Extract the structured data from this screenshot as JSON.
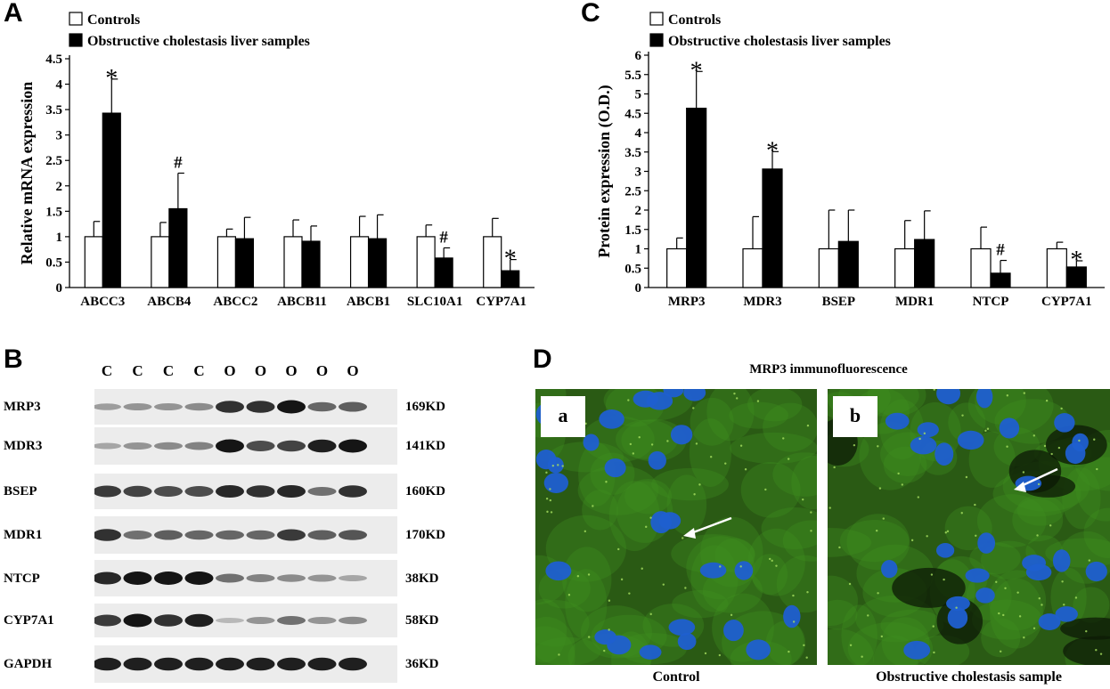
{
  "panels": {
    "a": "A",
    "b": "B",
    "c": "C",
    "d": "D"
  },
  "chart_data": [
    {
      "type": "bar",
      "panel": "A",
      "title": "",
      "xlabel": "",
      "ylabel": "Relative mRNA expression",
      "ylim": [
        0,
        4.5
      ],
      "yticks": [
        "0",
        "0.5",
        "1",
        "1.5",
        "2",
        "2.5",
        "3",
        "3.5",
        "4",
        "4.5"
      ],
      "categories": [
        "ABCC3",
        "ABCB4",
        "ABCC2",
        "ABCB11",
        "ABCB1",
        "SLC10A1",
        "CYP7A1"
      ],
      "series": [
        {
          "name": "Controls",
          "color": "#ffffff",
          "values": [
            1.0,
            1.0,
            1.0,
            1.0,
            1.0,
            1.0,
            1.0
          ],
          "errors": [
            0.3,
            0.28,
            0.15,
            0.33,
            0.4,
            0.23,
            0.36
          ]
        },
        {
          "name": "Obstructive cholestasis liver samples",
          "color": "#000000",
          "values": [
            3.43,
            1.55,
            0.96,
            0.91,
            0.96,
            0.58,
            0.33
          ],
          "errors": [
            0.67,
            0.7,
            0.42,
            0.3,
            0.47,
            0.2,
            0.22
          ]
        }
      ],
      "annotations": [
        "*",
        "#",
        "",
        "",
        "",
        "#",
        "*"
      ],
      "legend": "top-left",
      "grid": false
    },
    {
      "type": "bar",
      "panel": "C",
      "title": "",
      "xlabel": "",
      "ylabel": "Protein expression (O.D.)",
      "ylim": [
        0,
        6
      ],
      "yticks": [
        "0",
        "0.5",
        "1",
        "1.5",
        "2",
        "2.5",
        "3",
        "3.5",
        "4",
        "4.5",
        "5",
        "5.5",
        "6"
      ],
      "categories": [
        "MRP3",
        "MDR3",
        "BSEP",
        "MDR1",
        "NTCP",
        "CYP7A1"
      ],
      "series": [
        {
          "name": "Controls",
          "color": "#ffffff",
          "values": [
            1.0,
            1.0,
            1.0,
            1.0,
            1.0,
            1.0
          ],
          "errors": [
            0.28,
            0.83,
            1.0,
            0.73,
            0.56,
            0.17
          ]
        },
        {
          "name": "Obstructive cholestasis liver samples",
          "color": "#000000",
          "values": [
            4.63,
            3.06,
            1.19,
            1.24,
            0.37,
            0.53
          ],
          "errors": [
            0.95,
            0.45,
            0.81,
            0.74,
            0.33,
            0.16
          ]
        }
      ],
      "annotations": [
        "*",
        "*",
        "",
        "",
        "#",
        "*"
      ],
      "legend": "top-left",
      "grid": false
    }
  ],
  "blot": {
    "lane_labels": [
      "C",
      "C",
      "C",
      "C",
      "O",
      "O",
      "O",
      "O",
      "O"
    ],
    "rows": [
      {
        "name": "MRP3",
        "size": "169KD",
        "intensities": [
          0.25,
          0.3,
          0.3,
          0.35,
          0.85,
          0.85,
          1.0,
          0.55,
          0.6
        ]
      },
      {
        "name": "MDR3",
        "size": "141KD",
        "intensities": [
          0.2,
          0.3,
          0.35,
          0.4,
          1.0,
          0.7,
          0.75,
          0.95,
          1.0
        ]
      },
      {
        "name": "BSEP",
        "size": "160KD",
        "intensities": [
          0.8,
          0.75,
          0.7,
          0.7,
          0.9,
          0.85,
          0.9,
          0.5,
          0.85
        ]
      },
      {
        "name": "MDR1",
        "size": "170KD",
        "intensities": [
          0.85,
          0.5,
          0.6,
          0.55,
          0.55,
          0.55,
          0.8,
          0.6,
          0.65
        ]
      },
      {
        "name": "NTCP",
        "size": "38KD",
        "intensities": [
          0.9,
          1.0,
          1.0,
          1.0,
          0.5,
          0.4,
          0.35,
          0.3,
          0.2
        ]
      },
      {
        "name": "CYP7A1",
        "size": "58KD",
        "intensities": [
          0.8,
          1.0,
          0.85,
          0.95,
          0.1,
          0.3,
          0.5,
          0.3,
          0.35
        ]
      },
      {
        "name": "GAPDH",
        "size": "36KD",
        "intensities": [
          0.95,
          0.95,
          0.95,
          0.95,
          0.95,
          0.95,
          0.95,
          0.95,
          0.95
        ]
      }
    ]
  },
  "fluorescence": {
    "title": "MRP3 immunofluorescence",
    "images": [
      {
        "label": "a",
        "caption": "Control"
      },
      {
        "label": "b",
        "caption": "Obstructive cholestasis sample"
      }
    ],
    "colors": {
      "stain": "#3f8f1f",
      "nuclei": "#1f5fd0",
      "background": "#2a5a14"
    }
  }
}
